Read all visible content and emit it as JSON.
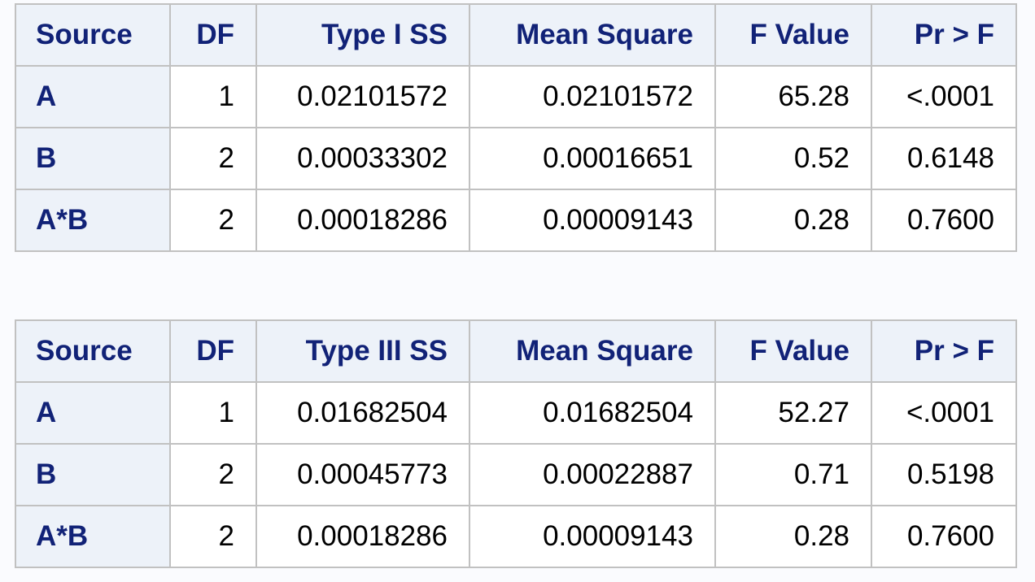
{
  "tables": [
    {
      "headers": [
        "Source",
        "DF",
        "Type I SS",
        "Mean Square",
        "F Value",
        "Pr > F"
      ],
      "rows": [
        [
          "A",
          "1",
          "0.02101572",
          "0.02101572",
          "65.28",
          "<.0001"
        ],
        [
          "B",
          "2",
          "0.00033302",
          "0.00016651",
          "0.52",
          "0.6148"
        ],
        [
          "A*B",
          "2",
          "0.00018286",
          "0.00009143",
          "0.28",
          "0.7600"
        ]
      ]
    },
    {
      "headers": [
        "Source",
        "DF",
        "Type III SS",
        "Mean Square",
        "F Value",
        "Pr > F"
      ],
      "rows": [
        [
          "A",
          "1",
          "0.01682504",
          "0.01682504",
          "52.27",
          "<.0001"
        ],
        [
          "B",
          "2",
          "0.00045773",
          "0.00022887",
          "0.71",
          "0.5198"
        ],
        [
          "A*B",
          "2",
          "0.00018286",
          "0.00009143",
          "0.28",
          "0.7600"
        ]
      ]
    }
  ],
  "colors": {
    "header_text": "#112277",
    "header_background": "#edf2f9",
    "cell_background": "#ffffff",
    "border": "#c1c1c1",
    "page_background": "#fafbfe"
  }
}
